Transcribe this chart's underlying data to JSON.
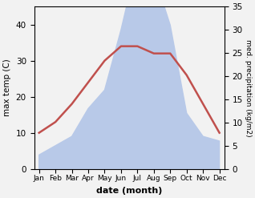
{
  "months": [
    "Jan",
    "Feb",
    "Mar",
    "Apr",
    "May",
    "Jun",
    "Jul",
    "Aug",
    "Sep",
    "Oct",
    "Nov",
    "Dec"
  ],
  "temperature": [
    10,
    13,
    18,
    24,
    30,
    34,
    34,
    32,
    32,
    26,
    18,
    10
  ],
  "precipitation": [
    3,
    5,
    7,
    13,
    17,
    30,
    45,
    42,
    31,
    12,
    7,
    6
  ],
  "temp_color": "#c0504d",
  "precip_fill_color": "#b8c9e8",
  "ylabel_left": "max temp (C)",
  "ylabel_right": "med. precipitation (kg/m2)",
  "xlabel": "date (month)",
  "ylim_left": [
    0,
    45
  ],
  "ylim_right": [
    0,
    35
  ],
  "temp_yticks": [
    0,
    10,
    20,
    30,
    40
  ],
  "precip_yticks": [
    0,
    5,
    10,
    15,
    20,
    25,
    30,
    35
  ],
  "bg_color": "#f2f2f2"
}
